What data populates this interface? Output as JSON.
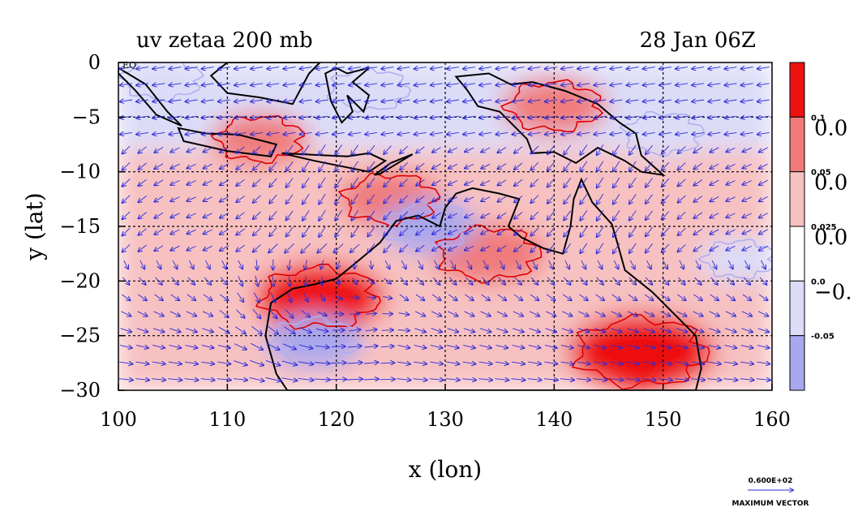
{
  "chart_data": {
    "type": "heatmap",
    "title_left": "uv zetaa 200 mb",
    "title_right": "28 Jan 06Z",
    "xlabel": "x (lon)",
    "ylabel": "y (lat)",
    "xlim": [
      100,
      160
    ],
    "ylim": [
      -30,
      0
    ],
    "x_ticks": [
      "100",
      "110",
      "120",
      "130",
      "140",
      "150",
      "160"
    ],
    "y_ticks": [
      "0",
      "−5",
      "−10",
      "−15",
      "−20",
      "−25",
      "−30"
    ],
    "eq_label": "EQ",
    "grid": true,
    "grid_style": "dashed",
    "colorbar": {
      "colors": [
        "#ee1111",
        "#f07a7a",
        "#f7c1c1",
        "#ffffff",
        "#dcdcf8",
        "#a8a8ee"
      ],
      "level_labels": [
        "0.1",
        "0.05",
        "0.025",
        "0.0",
        "-0.05"
      ],
      "big_labels": [
        "0.0",
        "0.0",
        "0.0",
        "−0."
      ]
    },
    "vector_legend": {
      "value_label": "0.600E+02",
      "caption": "MAXIMUM VECTOR"
    },
    "colors": {
      "strong_pos": "#ee1111",
      "mid_pos": "#f07a7a",
      "weak_pos": "#f7c1c1",
      "neutral": "#ffffff",
      "weak_neg": "#dcdcf8",
      "mid_neg": "#a8a8ee",
      "contour": "#e00000",
      "vector": "#2b2bd8",
      "coast": "#000000"
    },
    "vorticity_features": [
      {
        "lon": 118.5,
        "lat": -21.5,
        "sign": "positive",
        "strength": 0.08
      },
      {
        "lon": 148.0,
        "lat": -26.5,
        "sign": "positive",
        "strength": 0.1
      },
      {
        "lon": 134.0,
        "lat": -17.5,
        "sign": "positive",
        "strength": 0.06
      },
      {
        "lon": 125.0,
        "lat": -12.5,
        "sign": "positive",
        "strength": 0.05
      },
      {
        "lon": 113.0,
        "lat": -7.0,
        "sign": "positive",
        "strength": 0.04
      },
      {
        "lon": 140.0,
        "lat": -4.0,
        "sign": "positive",
        "strength": 0.05
      },
      {
        "lon": 118.0,
        "lat": -25.5,
        "sign": "negative",
        "strength": -0.04
      },
      {
        "lon": 123.0,
        "lat": -2.5,
        "sign": "negative",
        "strength": -0.03
      },
      {
        "lon": 128.5,
        "lat": -15.0,
        "sign": "negative",
        "strength": -0.04
      },
      {
        "lon": 150.0,
        "lat": -6.5,
        "sign": "negative",
        "strength": -0.03
      },
      {
        "lon": 104.0,
        "lat": -1.5,
        "sign": "negative",
        "strength": -0.03
      },
      {
        "lon": 157.0,
        "lat": -18.0,
        "sign": "negative",
        "strength": -0.02
      }
    ],
    "wind_regime": [
      {
        "lat_from": 0,
        "lat_to": -8,
        "direction": "easterly"
      },
      {
        "lat_from": -8,
        "lat_to": -18,
        "direction": "northeasterly"
      },
      {
        "lat_from": -18,
        "lat_to": -30,
        "direction": "westerly-southwesterly"
      }
    ]
  }
}
